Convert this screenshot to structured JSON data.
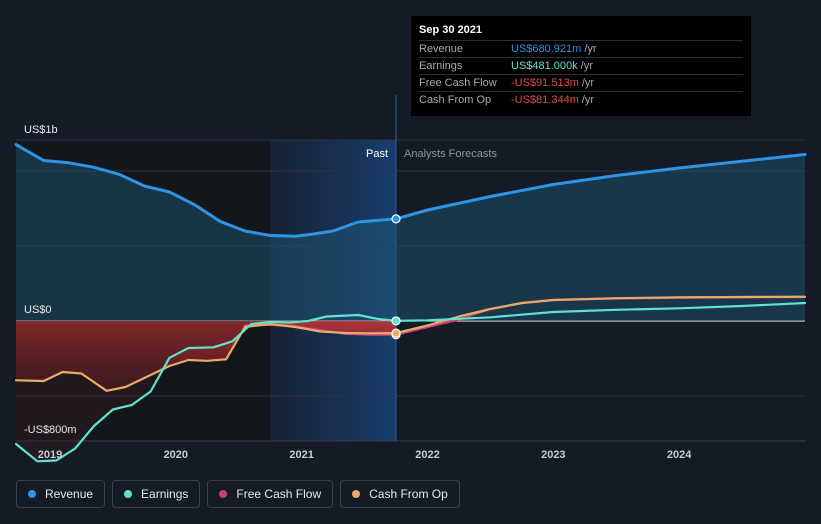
{
  "chart_data": {
    "type": "line",
    "title": "",
    "xlabel": "",
    "ylabel": "",
    "y_tick_labels": {
      "top": "US$1b",
      "zero": "US$0",
      "bottom": "-US$800m"
    },
    "ylim": [
      -1280,
      1200
    ],
    "x_ticks": [
      2019,
      2020,
      2021,
      2022,
      2023,
      2024
    ],
    "x_tick_labels": [
      "2019",
      "2020",
      "2021",
      "2022",
      "2023",
      "2024"
    ],
    "xlim": [
      2018.73,
      2025.0
    ],
    "past_label": "Past",
    "forecast_label": "Analysts Forecasts",
    "forecast_start": 2021.75,
    "series": [
      {
        "name": "Revenue",
        "color": "#2d94e6",
        "area": true,
        "x": [
          2018.73,
          2018.95,
          2019.15,
          2019.35,
          2019.55,
          2019.75,
          2019.95,
          2020.15,
          2020.35,
          2020.55,
          2020.75,
          2020.95,
          2021.05,
          2021.25,
          2021.45,
          2021.75,
          2022.0,
          2022.5,
          2023.0,
          2023.5,
          2024.0,
          2024.5,
          2025.0
        ],
        "y": [
          1176,
          1070,
          1055,
          1025,
          978,
          900,
          860,
          775,
          665,
          600,
          570,
          565,
          575,
          600,
          660,
          681,
          740,
          830,
          910,
          970,
          1020,
          1065,
          1110
        ]
      },
      {
        "name": "Earnings",
        "color": "#5fe3cf",
        "x": [
          2018.73,
          2018.9,
          2019.05,
          2019.2,
          2019.35,
          2019.5,
          2019.65,
          2019.8,
          2019.95,
          2020.1,
          2020.3,
          2020.45,
          2020.6,
          2020.75,
          2020.9,
          2021.05,
          2021.2,
          2021.45,
          2021.6,
          2021.75,
          2022.0,
          2022.5,
          2023.0,
          2023.5,
          2024.0,
          2024.5,
          2025.0
        ],
        "y": [
          -820,
          -935,
          -930,
          -850,
          -700,
          -590,
          -560,
          -470,
          -245,
          -180,
          -175,
          -135,
          -20,
          -5,
          -10,
          0,
          30,
          40,
          15,
          0.481,
          5,
          25,
          60,
          75,
          85,
          100,
          120
        ]
      },
      {
        "name": "Free Cash Flow",
        "color": "#c7407e",
        "x": [
          2020.55,
          2020.75,
          2020.95,
          2021.15,
          2021.35,
          2021.55,
          2021.75,
          2022.0,
          2022.25,
          2022.5,
          2022.75,
          2023.0,
          2023.5,
          2024.0,
          2024.5,
          2025.0
        ],
        "y": [
          -30,
          -25,
          -35,
          -60,
          -85,
          -92,
          -92,
          -40,
          10,
          80,
          120,
          140,
          150,
          155,
          158,
          160
        ]
      },
      {
        "name": "Cash From Op",
        "color": "#e8ad64",
        "x": [
          2018.73,
          2018.95,
          2019.1,
          2019.25,
          2019.45,
          2019.6,
          2019.8,
          2019.95,
          2020.1,
          2020.25,
          2020.4,
          2020.55,
          2020.75,
          2020.95,
          2021.15,
          2021.35,
          2021.55,
          2021.75,
          2022.0,
          2022.25,
          2022.5,
          2022.75,
          2023.0,
          2023.5,
          2024.0,
          2024.5,
          2025.0
        ],
        "y": [
          -395,
          -400,
          -340,
          -350,
          -465,
          -440,
          -360,
          -300,
          -260,
          -265,
          -255,
          -40,
          -20,
          -40,
          -70,
          -80,
          -82,
          -81,
          -30,
          30,
          80,
          120,
          140,
          152,
          158,
          160,
          162
        ]
      }
    ]
  },
  "tooltip": {
    "date": "Sep 30 2021",
    "rows": [
      {
        "label": "Revenue",
        "value": "US$680.921m",
        "unit": "/yr",
        "color": "#2d94e6"
      },
      {
        "label": "Earnings",
        "value": "US$481.000k",
        "unit": "/yr",
        "color": "#5fe3cf"
      },
      {
        "label": "Free Cash Flow",
        "value": "-US$91.513m",
        "unit": "/yr",
        "color": "#e04b4b"
      },
      {
        "label": "Cash From Op",
        "value": "-US$81.344m",
        "unit": "/yr",
        "color": "#e04b4b"
      }
    ]
  },
  "legend": [
    {
      "label": "Revenue",
      "color": "#2d94e6"
    },
    {
      "label": "Earnings",
      "color": "#5fe3cf"
    },
    {
      "label": "Free Cash Flow",
      "color": "#c7407e"
    },
    {
      "label": "Cash From Op",
      "color": "#e8ad64"
    }
  ]
}
